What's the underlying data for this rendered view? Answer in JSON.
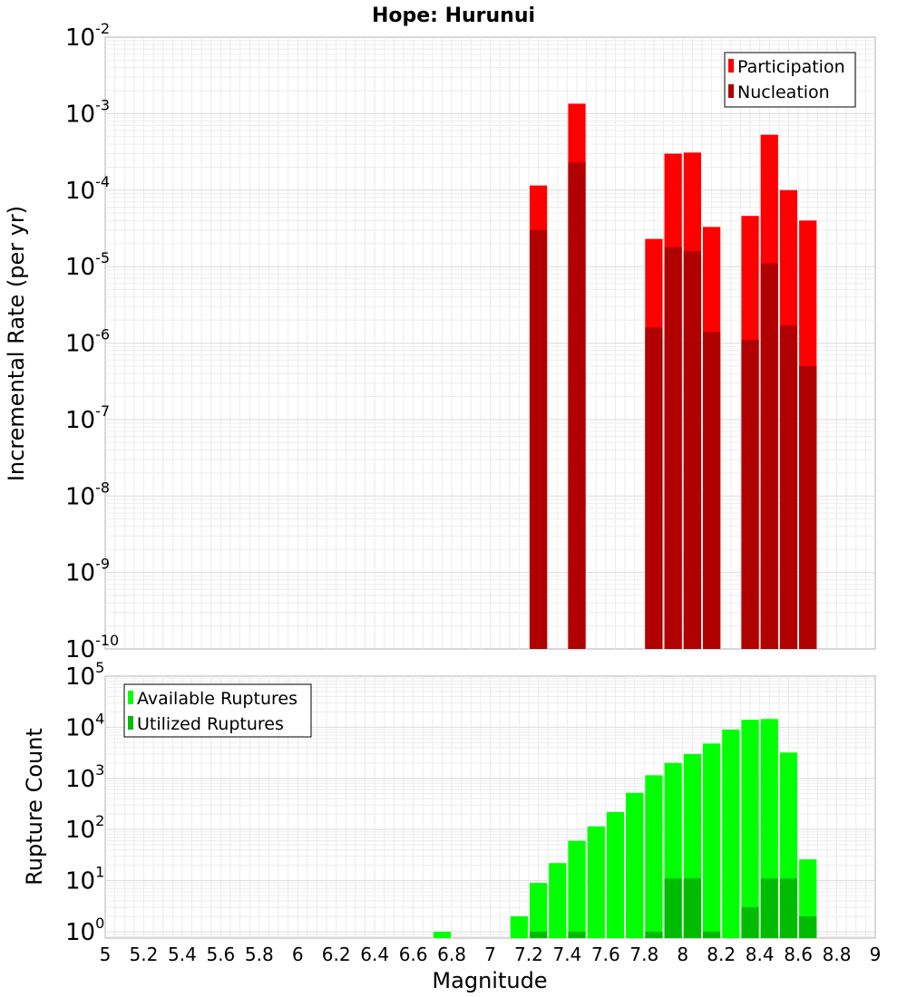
{
  "figure": {
    "title": "Hope: Hurunui",
    "xlabel": "Magnitude"
  },
  "chart_data": [
    {
      "type": "bar",
      "title": "Hope: Hurunui",
      "xlabel": "Magnitude",
      "ylabel": "Incremental Rate (per yr)",
      "yscale": "log",
      "ylim": [
        1e-10,
        0.01
      ],
      "xlim": [
        5,
        9
      ],
      "grid": true,
      "legend_position": "top-right",
      "bar_width": 0.1,
      "x": [
        7.25,
        7.45,
        7.85,
        7.95,
        8.05,
        8.15,
        8.35,
        8.45,
        8.55,
        8.65
      ],
      "series": [
        {
          "name": "Participation",
          "color": "#ff0000",
          "values": [
            0.000115,
            0.00135,
            2.3e-05,
            0.0003,
            0.00031,
            3.3e-05,
            4.6e-05,
            0.00053,
            0.0001,
            4e-05
          ]
        },
        {
          "name": "Nucleation",
          "color": "#b00000",
          "values": [
            3e-05,
            0.00023,
            1.6e-06,
            1.8e-05,
            1.6e-05,
            1.4e-06,
            1.1e-06,
            1.1e-05,
            1.7e-06,
            5e-07
          ]
        }
      ],
      "y_ticks": [
        {
          "base": "10",
          "exp": "-2"
        },
        {
          "base": "10",
          "exp": "-3"
        },
        {
          "base": "10",
          "exp": "-4"
        },
        {
          "base": "10",
          "exp": "-5"
        },
        {
          "base": "10",
          "exp": "-6"
        },
        {
          "base": "10",
          "exp": "-7"
        },
        {
          "base": "10",
          "exp": "-8"
        },
        {
          "base": "10",
          "exp": "-9"
        },
        {
          "base": "10",
          "exp": "-10"
        }
      ]
    },
    {
      "type": "bar",
      "xlabel": "Magnitude",
      "ylabel": "Rupture Count",
      "yscale": "log",
      "ylim": [
        0.75,
        100000
      ],
      "xlim": [
        5,
        9
      ],
      "grid": true,
      "legend_position": "top-left",
      "bar_width": 0.1,
      "x": [
        6.75,
        7.15,
        7.25,
        7.35,
        7.45,
        7.55,
        7.65,
        7.75,
        7.85,
        7.95,
        8.05,
        8.15,
        8.25,
        8.35,
        8.45,
        8.55,
        8.65
      ],
      "series": [
        {
          "name": "Available Ruptures",
          "color": "#00ff00",
          "values": [
            1,
            2,
            9,
            22,
            60,
            115,
            220,
            520,
            1150,
            2000,
            3000,
            4800,
            9000,
            14000,
            14500,
            3200,
            26
          ]
        },
        {
          "name": "Utilized Ruptures",
          "color": "#00bb00",
          "values": [
            0,
            0,
            1,
            0,
            1,
            0,
            0,
            0,
            1,
            11,
            11,
            1,
            0,
            3,
            11,
            11,
            2
          ]
        }
      ],
      "y_ticks": [
        {
          "base": "10",
          "exp": "5"
        },
        {
          "base": "10",
          "exp": "4"
        },
        {
          "base": "10",
          "exp": "3"
        },
        {
          "base": "10",
          "exp": "2"
        },
        {
          "base": "10",
          "exp": "1"
        },
        {
          "base": "10",
          "exp": "0"
        }
      ],
      "x_ticks": [
        "5",
        "5.2",
        "5.4",
        "5.6",
        "5.8",
        "6",
        "6.2",
        "6.4",
        "6.6",
        "6.8",
        "7",
        "7.2",
        "7.4",
        "7.6",
        "7.8",
        "8",
        "8.2",
        "8.4",
        "8.6",
        "8.8",
        "9"
      ]
    }
  ]
}
